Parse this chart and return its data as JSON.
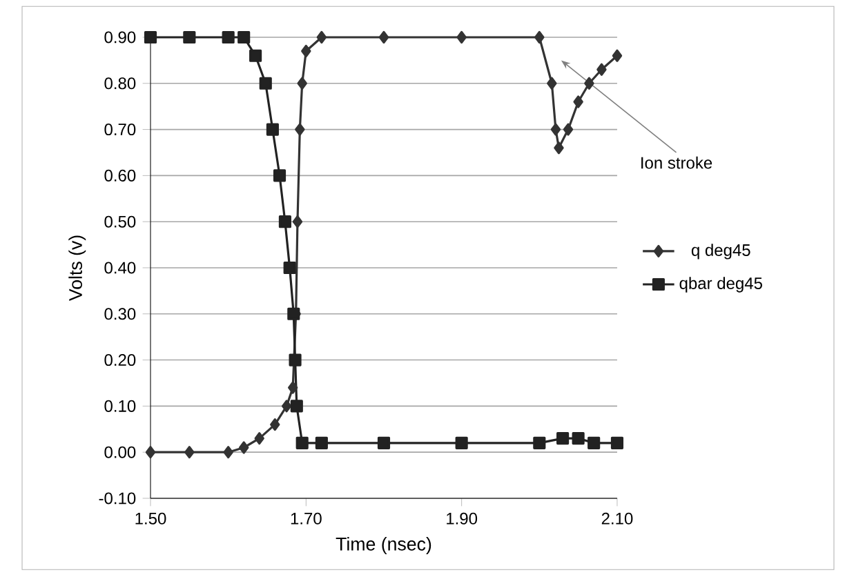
{
  "chart_data": {
    "type": "line",
    "xlabel": "Time (nsec)",
    "ylabel": "Volts (v)",
    "xlim": [
      1.5,
      2.1
    ],
    "ylim": [
      -0.1,
      0.9
    ],
    "xticks": [
      {
        "value": 1.5,
        "label": "1.50"
      },
      {
        "value": 1.7,
        "label": "1.70"
      },
      {
        "value": 1.9,
        "label": "1.90"
      },
      {
        "value": 2.1,
        "label": "2.10"
      }
    ],
    "yticks": [
      {
        "value": -0.1,
        "label": "-0.10"
      },
      {
        "value": 0.0,
        "label": "0.00"
      },
      {
        "value": 0.1,
        "label": "0.10"
      },
      {
        "value": 0.2,
        "label": "0.20"
      },
      {
        "value": 0.3,
        "label": "0.30"
      },
      {
        "value": 0.4,
        "label": "0.40"
      },
      {
        "value": 0.5,
        "label": "0.50"
      },
      {
        "value": 0.6,
        "label": "0.60"
      },
      {
        "value": 0.7,
        "label": "0.70"
      },
      {
        "value": 0.8,
        "label": "0.80"
      },
      {
        "value": 0.9,
        "label": "0.90"
      }
    ],
    "grid": "y",
    "legend": "right",
    "series": [
      {
        "name": "q deg45",
        "color": "#333333",
        "marker": "diamond",
        "x": [
          1.5,
          1.55,
          1.6,
          1.62,
          1.64,
          1.66,
          1.675,
          1.683,
          1.687,
          1.689,
          1.692,
          1.695,
          1.7,
          1.72,
          1.8,
          1.9,
          2.0,
          2.016,
          2.021,
          2.025,
          2.037,
          2.05,
          2.064,
          2.08,
          2.1
        ],
        "values": [
          0.0,
          0.0,
          0.0,
          0.01,
          0.03,
          0.06,
          0.1,
          0.14,
          0.3,
          0.5,
          0.7,
          0.8,
          0.87,
          0.9,
          0.9,
          0.9,
          0.9,
          0.8,
          0.7,
          0.66,
          0.7,
          0.76,
          0.8,
          0.83,
          0.86
        ]
      },
      {
        "name": "qbar deg45",
        "color": "#222222",
        "marker": "square",
        "x": [
          1.5,
          1.55,
          1.6,
          1.62,
          1.635,
          1.648,
          1.657,
          1.666,
          1.673,
          1.679,
          1.684,
          1.686,
          1.688,
          1.695,
          1.72,
          1.8,
          1.9,
          2.0,
          2.03,
          2.05,
          2.07,
          2.1
        ],
        "values": [
          0.9,
          0.9,
          0.9,
          0.9,
          0.86,
          0.8,
          0.7,
          0.6,
          0.5,
          0.4,
          0.3,
          0.2,
          0.1,
          0.02,
          0.02,
          0.02,
          0.02,
          0.02,
          0.03,
          0.03,
          0.02,
          0.02
        ]
      }
    ],
    "annotations": [
      "Ion stroke"
    ]
  }
}
